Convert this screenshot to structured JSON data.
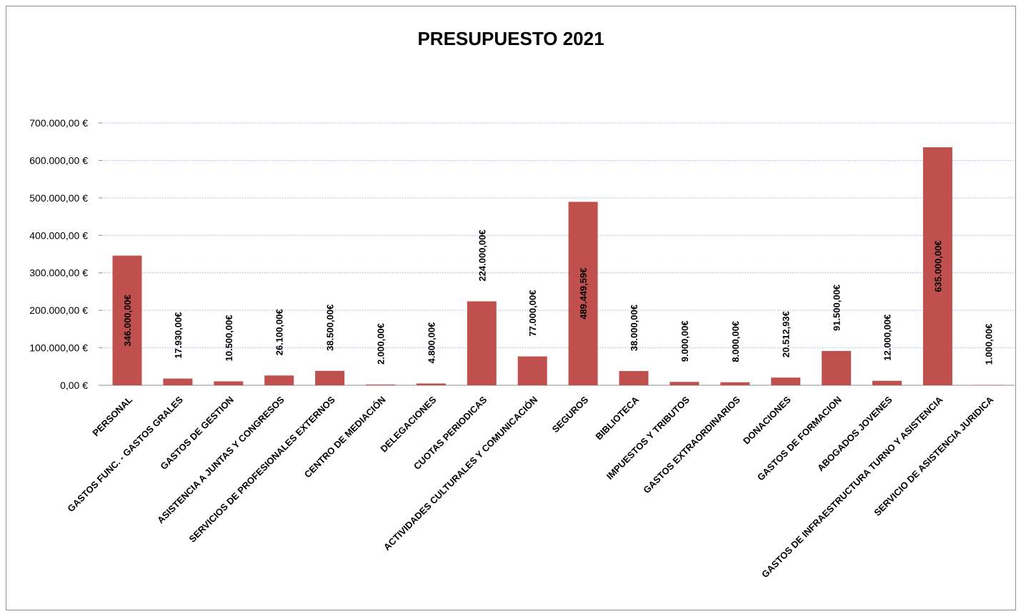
{
  "chart_data": {
    "type": "bar",
    "title": "PRESUPUESTO 2021",
    "xlabel": "",
    "ylabel": "",
    "ylim": [
      0,
      700000
    ],
    "ytick_values": [
      0,
      100000,
      200000,
      300000,
      400000,
      500000,
      600000,
      700000
    ],
    "ytick_labels": [
      "0,00 €",
      "100.000,00 €",
      "200.000,00 €",
      "300.000,00 €",
      "400.000,00 €",
      "500.000,00 €",
      "600.000,00 €",
      "700.000,00 €"
    ],
    "grid": "horizontal-dotted",
    "legend": "none",
    "bar_color": "#c0504d",
    "categories": [
      "PERSONAL",
      "GASTOS FUNC. - GASTOS GRALES",
      "GASTOS DE GESTION",
      "ASISTENCIA A JUNTAS Y CONGRESOS",
      "SERVICIOS DE PROFESIONALES EXTERNOS",
      "CENTRO DE MEDIACIÓN",
      "DELEGACIONES",
      "CUOTAS PERIODICAS",
      "ACTIVIDADES CULTURALES Y COMUNICACIÓN",
      "SEGUROS",
      "BIBLIOTECA",
      "IMPUESTOS Y TRIBUTOS",
      "GASTOS EXTRAORDINARIOS",
      "DONACIONES",
      "GASTOS DE FORMACION",
      "ABOGADOS JOVENES",
      "GASTOS DE INFRAESTRUCTURA TURNO Y ASISTENCIA",
      "SERVICIO DE ASISTENCIA JURIDICA"
    ],
    "values": [
      346000,
      17930,
      10500,
      26100,
      38500,
      2000,
      4800,
      224000,
      77000,
      489449.59,
      38000,
      9000,
      8000,
      20512.93,
      91500,
      12000,
      635000,
      1000
    ],
    "data_labels": [
      "346.000,00€",
      "17.930,00€",
      "10.500,00€",
      "26.100,00€",
      "38.500,00€",
      "2.000,00€",
      "4.800,00€",
      "224.000,00€",
      "77.000,00€",
      "489.449,59€",
      "38.000,00€",
      "9.000,00€",
      "8.000,00€",
      "20.512,93€",
      "91.500,00€",
      "12.000,00€",
      "635.000,00€",
      "1.000,00€"
    ]
  }
}
